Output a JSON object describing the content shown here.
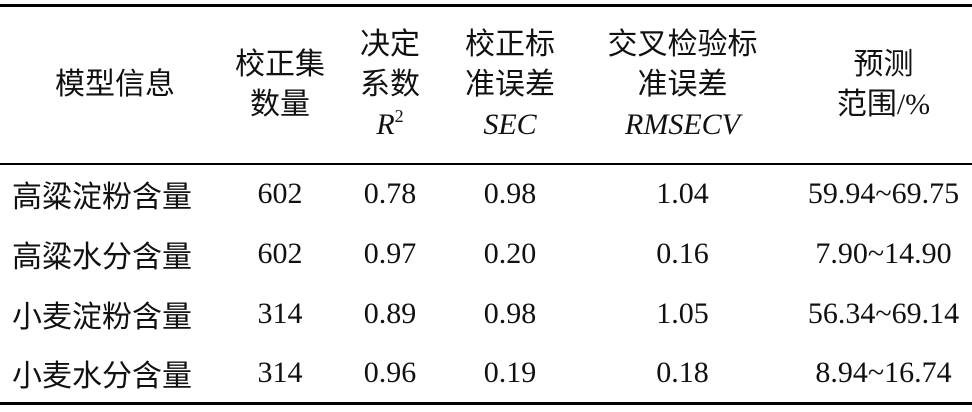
{
  "table": {
    "header": [
      {
        "lines": [
          "模型信息"
        ]
      },
      {
        "lines": [
          "校正集",
          "数量"
        ]
      },
      {
        "lines": [
          "决定",
          "系数"
        ],
        "symbol": "R",
        "symbol_sup": "2"
      },
      {
        "lines": [
          "校正标",
          "准误差"
        ],
        "symbol": "SEC"
      },
      {
        "lines": [
          "交叉检验标",
          "准误差"
        ],
        "symbol": "RMSECV"
      },
      {
        "lines": [
          "预测",
          "范围/%"
        ]
      }
    ],
    "rows": [
      [
        "高粱淀粉含量",
        "602",
        "0.78",
        "0.98",
        "1.04",
        "59.94~69.75"
      ],
      [
        "高粱水分含量",
        "602",
        "0.97",
        "0.20",
        "0.16",
        "7.90~14.90"
      ],
      [
        "小麦淀粉含量",
        "314",
        "0.89",
        "0.98",
        "1.05",
        "56.34~69.14"
      ],
      [
        "小麦水分含量",
        "314",
        "0.96",
        "0.19",
        "0.18",
        "8.94~16.74"
      ]
    ]
  }
}
